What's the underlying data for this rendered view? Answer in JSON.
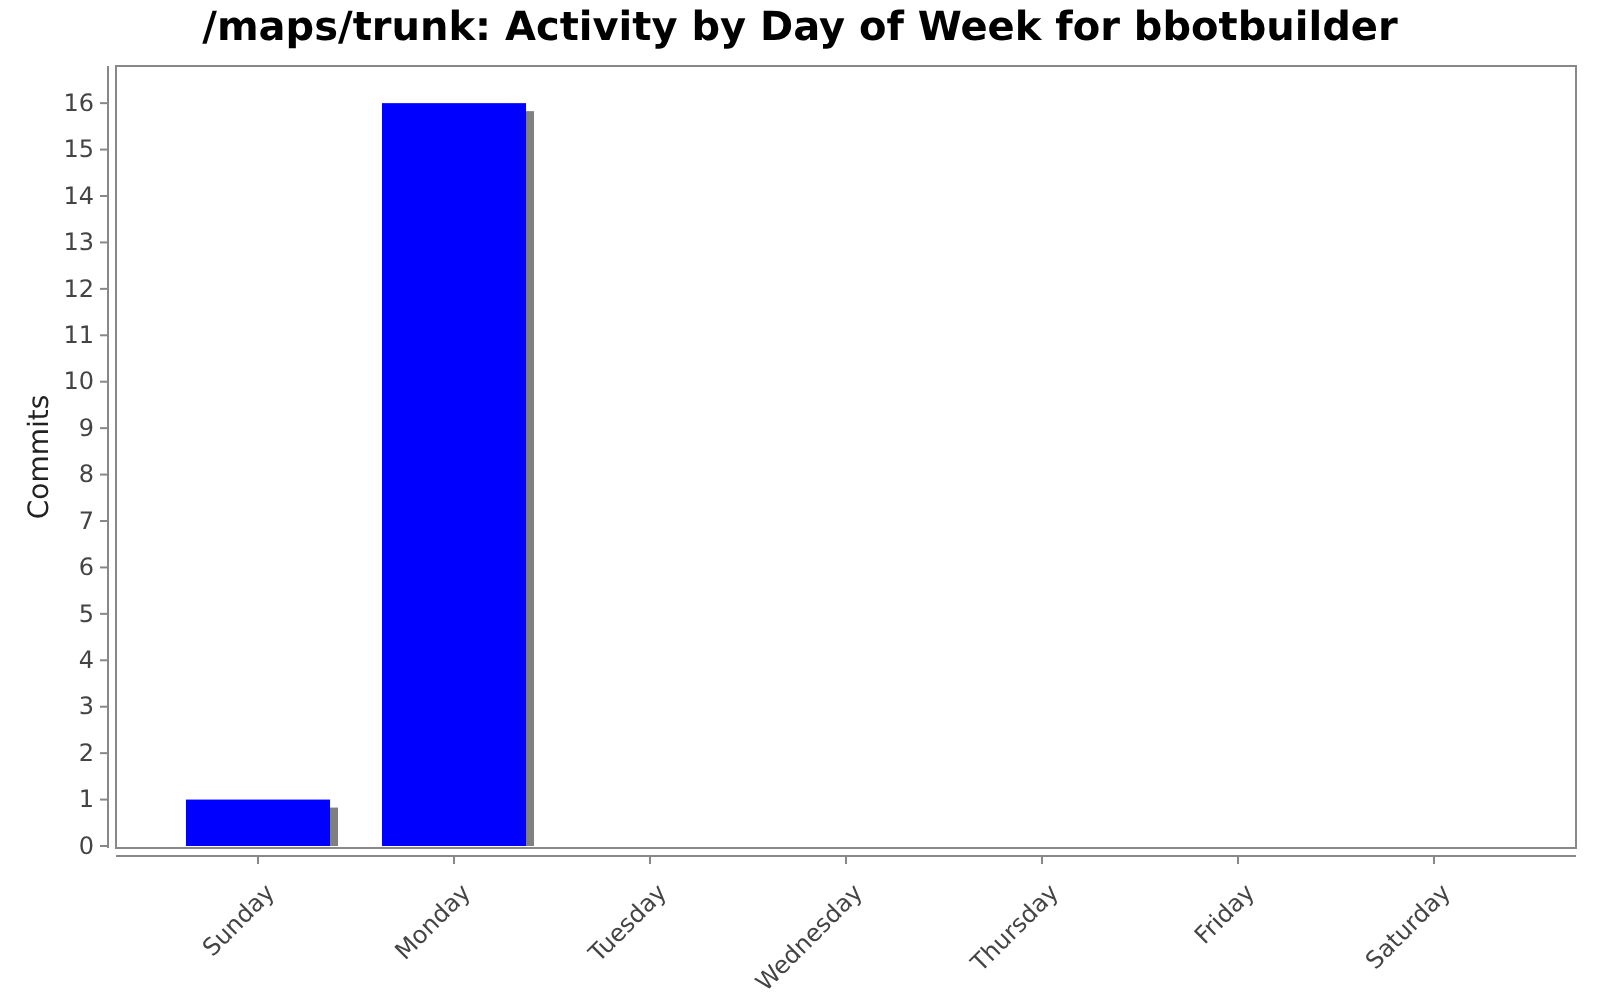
{
  "chart_data": {
    "type": "bar",
    "title": "/maps/trunk: Activity by Day of Week for bbotbuilder",
    "ylabel": "Commits",
    "categories": [
      "Sunday",
      "Monday",
      "Tuesday",
      "Wednesday",
      "Thursday",
      "Friday",
      "Saturday"
    ],
    "values": [
      1,
      16,
      0,
      0,
      0,
      0,
      0
    ],
    "color": "#0000ff",
    "ylim": [
      0,
      16.8
    ],
    "yticks": [
      0,
      1,
      2,
      3,
      4,
      5,
      6,
      7,
      8,
      9,
      10,
      11,
      12,
      13,
      14,
      15,
      16
    ],
    "grid": false
  }
}
